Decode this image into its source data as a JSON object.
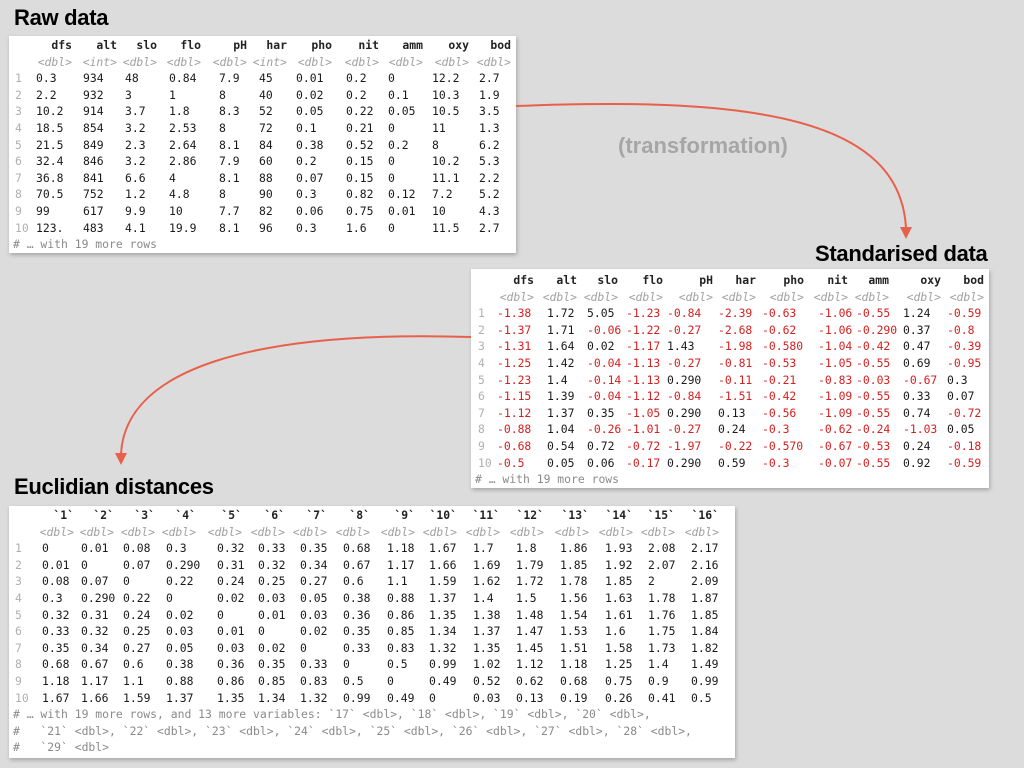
{
  "headings": {
    "raw": "Raw data",
    "transformation": "(transformation)",
    "standardised": "Standarised data",
    "euclidian": "Euclidian distances"
  },
  "arrow_color": "#e8604c",
  "negative_color": "#d62020",
  "raw": {
    "columns": [
      "dfs",
      "alt",
      "slo",
      "flo",
      "pH",
      "har",
      "pho",
      "nit",
      "amm",
      "oxy",
      "bod"
    ],
    "types": [
      "<dbl>",
      "<int>",
      "<dbl>",
      "<dbl>",
      "<dbl>",
      "<int>",
      "<dbl>",
      "<dbl>",
      "<dbl>",
      "<dbl>",
      "<dbl>"
    ],
    "index": [
      "1",
      "2",
      "3",
      "4",
      "5",
      "6",
      "7",
      "8",
      "9",
      "10"
    ],
    "rows": [
      [
        "0.3",
        "934",
        "48",
        "0.84",
        "7.9",
        "45",
        "0.01",
        "0.2",
        "0",
        "12.2",
        "2.7"
      ],
      [
        "2.2",
        "932",
        "3",
        "1",
        "8",
        "40",
        "0.02",
        "0.2",
        "0.1",
        "10.3",
        "1.9"
      ],
      [
        "10.2",
        "914",
        "3.7",
        "1.8",
        "8.3",
        "52",
        "0.05",
        "0.22",
        "0.05",
        "10.5",
        "3.5"
      ],
      [
        "18.5",
        "854",
        "3.2",
        "2.53",
        "8",
        "72",
        "0.1",
        "0.21",
        "0",
        "11",
        "1.3"
      ],
      [
        "21.5",
        "849",
        "2.3",
        "2.64",
        "8.1",
        "84",
        "0.38",
        "0.52",
        "0.2",
        "8",
        "6.2"
      ],
      [
        "32.4",
        "846",
        "3.2",
        "2.86",
        "7.9",
        "60",
        "0.2",
        "0.15",
        "0",
        "10.2",
        "5.3"
      ],
      [
        "36.8",
        "841",
        "6.6",
        "4",
        "8.1",
        "88",
        "0.07",
        "0.15",
        "0",
        "11.1",
        "2.2"
      ],
      [
        "70.5",
        "752",
        "1.2",
        "4.8",
        "8",
        "90",
        "0.3",
        "0.82",
        "0.12",
        "7.2",
        "5.2"
      ],
      [
        "99",
        "617",
        "9.9",
        "10",
        "7.7",
        "82",
        "0.06",
        "0.75",
        "0.01",
        "10",
        "4.3"
      ],
      [
        "123.",
        "483",
        "4.1",
        "19.9",
        "8.1",
        "96",
        "0.3",
        "1.6",
        "0",
        "11.5",
        "2.7"
      ]
    ],
    "footer": "# … with 19 more rows"
  },
  "standardised": {
    "columns": [
      "dfs",
      "alt",
      "slo",
      "flo",
      "pH",
      "har",
      "pho",
      "nit",
      "amm",
      "oxy",
      "bod"
    ],
    "types": [
      "<dbl>",
      "<dbl>",
      "<dbl>",
      "<dbl>",
      "<dbl>",
      "<dbl>",
      "<dbl>",
      "<dbl>",
      "<dbl>",
      "<dbl>",
      "<dbl>"
    ],
    "index": [
      "1",
      "2",
      "3",
      "4",
      "5",
      "6",
      "7",
      "8",
      "9",
      "10"
    ],
    "rows": [
      [
        "-1.38",
        "1.72",
        "5.05",
        "-1.23",
        "-0.84",
        "-2.39",
        "-0.63",
        "-1.06",
        "-0.55",
        "1.24",
        "-0.59"
      ],
      [
        "-1.37",
        "1.71",
        "-0.06",
        "-1.22",
        "-0.27",
        "-2.68",
        "-0.62",
        "-1.06",
        "-0.290",
        "0.37",
        "-0.8"
      ],
      [
        "-1.31",
        "1.64",
        "0.02",
        "-1.17",
        "1.43",
        "-1.98",
        "-0.580",
        "-1.04",
        "-0.42",
        "0.47",
        "-0.39"
      ],
      [
        "-1.25",
        "1.42",
        "-0.04",
        "-1.13",
        "-0.27",
        "-0.81",
        "-0.53",
        "-1.05",
        "-0.55",
        "0.69",
        "-0.95"
      ],
      [
        "-1.23",
        "1.4",
        "-0.14",
        "-1.13",
        "0.290",
        "-0.11",
        "-0.21",
        "-0.83",
        "-0.03",
        "-0.67",
        "0.3"
      ],
      [
        "-1.15",
        "1.39",
        "-0.04",
        "-1.12",
        "-0.84",
        "-1.51",
        "-0.42",
        "-1.09",
        "-0.55",
        "0.33",
        "0.07"
      ],
      [
        "-1.12",
        "1.37",
        "0.35",
        "-1.05",
        "0.290",
        "0.13",
        "-0.56",
        "-1.09",
        "-0.55",
        "0.74",
        "-0.72"
      ],
      [
        "-0.88",
        "1.04",
        "-0.26",
        "-1.01",
        "-0.27",
        "0.24",
        "-0.3",
        "-0.62",
        "-0.24",
        "-1.03",
        "0.05"
      ],
      [
        "-0.68",
        "0.54",
        "0.72",
        "-0.72",
        "-1.97",
        "-0.22",
        "-0.570",
        "-0.67",
        "-0.53",
        "0.24",
        "-0.18"
      ],
      [
        "-0.5",
        "0.05",
        "0.06",
        "-0.17",
        "0.290",
        "0.59",
        "-0.3",
        "-0.07",
        "-0.55",
        "0.92",
        "-0.59"
      ]
    ],
    "footer": "# … with 19 more rows"
  },
  "distances": {
    "columns": [
      "`1`",
      "`2`",
      "`3`",
      "`4`",
      "`5`",
      "`6`",
      "`7`",
      "`8`",
      "`9`",
      "`10`",
      "`11`",
      "`12`",
      "`13`",
      "`14`",
      "`15`",
      "`16`"
    ],
    "types": [
      "<dbl>",
      "<dbl>",
      "<dbl>",
      "<dbl>",
      "<dbl>",
      "<dbl>",
      "<dbl>",
      "<dbl>",
      "<dbl>",
      "<dbl>",
      "<dbl>",
      "<dbl>",
      "<dbl>",
      "<dbl>",
      "<dbl>",
      "<dbl>"
    ],
    "index": [
      "1",
      "2",
      "3",
      "4",
      "5",
      "6",
      "7",
      "8",
      "9",
      "10"
    ],
    "rows": [
      [
        "0",
        "0.01",
        "0.08",
        "0.3",
        "0.32",
        "0.33",
        "0.35",
        "0.68",
        "1.18",
        "1.67",
        "1.7",
        "1.8",
        "1.86",
        "1.93",
        "2.08",
        "2.17"
      ],
      [
        "0.01",
        "0",
        "0.07",
        "0.290",
        "0.31",
        "0.32",
        "0.34",
        "0.67",
        "1.17",
        "1.66",
        "1.69",
        "1.79",
        "1.85",
        "1.92",
        "2.07",
        "2.16"
      ],
      [
        "0.08",
        "0.07",
        "0",
        "0.22",
        "0.24",
        "0.25",
        "0.27",
        "0.6",
        "1.1",
        "1.59",
        "1.62",
        "1.72",
        "1.78",
        "1.85",
        "2",
        "2.09"
      ],
      [
        "0.3",
        "0.290",
        "0.22",
        "0",
        "0.02",
        "0.03",
        "0.05",
        "0.38",
        "0.88",
        "1.37",
        "1.4",
        "1.5",
        "1.56",
        "1.63",
        "1.78",
        "1.87"
      ],
      [
        "0.32",
        "0.31",
        "0.24",
        "0.02",
        "0",
        "0.01",
        "0.03",
        "0.36",
        "0.86",
        "1.35",
        "1.38",
        "1.48",
        "1.54",
        "1.61",
        "1.76",
        "1.85"
      ],
      [
        "0.33",
        "0.32",
        "0.25",
        "0.03",
        "0.01",
        "0",
        "0.02",
        "0.35",
        "0.85",
        "1.34",
        "1.37",
        "1.47",
        "1.53",
        "1.6",
        "1.75",
        "1.84"
      ],
      [
        "0.35",
        "0.34",
        "0.27",
        "0.05",
        "0.03",
        "0.02",
        "0",
        "0.33",
        "0.83",
        "1.32",
        "1.35",
        "1.45",
        "1.51",
        "1.58",
        "1.73",
        "1.82"
      ],
      [
        "0.68",
        "0.67",
        "0.6",
        "0.38",
        "0.36",
        "0.35",
        "0.33",
        "0",
        "0.5",
        "0.99",
        "1.02",
        "1.12",
        "1.18",
        "1.25",
        "1.4",
        "1.49"
      ],
      [
        "1.18",
        "1.17",
        "1.1",
        "0.88",
        "0.86",
        "0.85",
        "0.83",
        "0.5",
        "0",
        "0.49",
        "0.52",
        "0.62",
        "0.68",
        "0.75",
        "0.9",
        "0.99"
      ],
      [
        "1.67",
        "1.66",
        "1.59",
        "1.37",
        "1.35",
        "1.34",
        "1.32",
        "0.99",
        "0.49",
        "0",
        "0.03",
        "0.13",
        "0.19",
        "0.26",
        "0.41",
        "0.5"
      ]
    ],
    "footer": [
      "# … with 19 more rows, and 13 more variables: `17` <dbl>, `18` <dbl>, `19` <dbl>, `20` <dbl>,",
      "#   `21` <dbl>, `22` <dbl>, `23` <dbl>, `24` <dbl>, `25` <dbl>, `26` <dbl>, `27` <dbl>, `28` <dbl>,",
      "#   `29` <dbl>"
    ]
  }
}
